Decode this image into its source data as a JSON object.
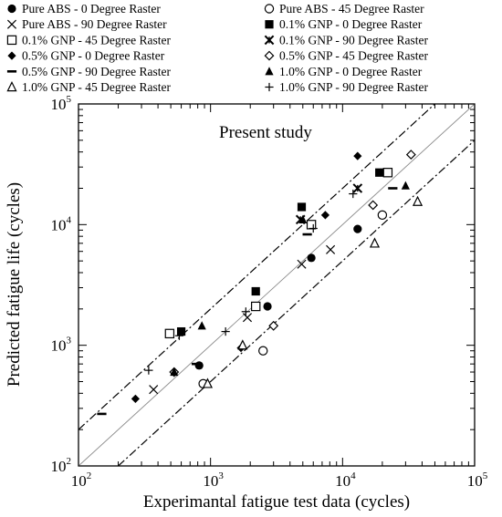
{
  "chart_data": {
    "type": "scatter",
    "title": "",
    "xlabel": "Experimantal fatigue test data (cycles)",
    "ylabel": "Predicted fatigue life (cycles)",
    "x_scale": "log",
    "y_scale": "log",
    "xlim": [
      100,
      100000
    ],
    "ylim": [
      100,
      100000
    ],
    "x_ticks": [
      100,
      1000,
      10000,
      100000
    ],
    "y_ticks": [
      100,
      1000,
      10000,
      100000
    ],
    "legend_position": "top",
    "annotation": "Present study",
    "reference_lines": [
      {
        "name": "perfect",
        "factor": 1,
        "style": "solid",
        "color": "#8a8a8a"
      },
      {
        "name": "upper",
        "factor": 2,
        "style": "dash-dot",
        "color": "#000000"
      },
      {
        "name": "lower",
        "factor": 0.5,
        "style": "dash-dot",
        "color": "#000000"
      }
    ],
    "series": [
      {
        "name": "Pure ABS - 0 Degree Raster",
        "marker": "filled-circle",
        "x": [
          820,
          2700,
          5800,
          13000
        ],
        "y": [
          680,
          2100,
          5300,
          9200
        ]
      },
      {
        "name": "Pure ABS - 45 Degree Raster",
        "marker": "open-circle",
        "x": [
          880,
          2500,
          20000
        ],
        "y": [
          480,
          900,
          12000
        ]
      },
      {
        "name": "Pure ABS - 90 Degree Raster",
        "marker": "x",
        "x": [
          370,
          1900,
          4900,
          8100
        ],
        "y": [
          430,
          1700,
          4700,
          6200
        ]
      },
      {
        "name": "0.1% GNP - 0 Degree Raster",
        "marker": "filled-square",
        "x": [
          600,
          2200,
          4900,
          19000
        ],
        "y": [
          1300,
          2800,
          14000,
          27000
        ]
      },
      {
        "name": "0.1% GNP - 45 Degree Raster",
        "marker": "open-square",
        "x": [
          490,
          2200,
          5800,
          22000
        ],
        "y": [
          1250,
          2100,
          10000,
          27000
        ]
      },
      {
        "name": "0.1% GNP - 90 Degree Raster",
        "marker": "asterisk",
        "x": [
          4800,
          13000
        ],
        "y": [
          11000,
          20000
        ]
      },
      {
        "name": "0.5% GNP - 0 Degree Raster",
        "marker": "filled-diamond",
        "x": [
          270,
          1700,
          7400,
          13000
        ],
        "y": [
          360,
          950,
          12000,
          37000
        ]
      },
      {
        "name": "0.5% GNP - 45 Degree Raster",
        "marker": "open-diamond",
        "x": [
          530,
          3000,
          17000,
          33000
        ],
        "y": [
          600,
          1450,
          14500,
          38000
        ]
      },
      {
        "name": "0.5% GNP - 90 Degree Raster",
        "marker": "dash",
        "x": [
          150,
          780,
          5400,
          24000
        ],
        "y": [
          270,
          700,
          8300,
          20000
        ]
      },
      {
        "name": "1.0% GNP - 0 Degree Raster",
        "marker": "filled-triangle",
        "x": [
          530,
          860,
          5000,
          30000
        ],
        "y": [
          600,
          1450,
          11000,
          21000
        ]
      },
      {
        "name": "1.0% GNP - 45 Degree Raster",
        "marker": "open-triangle",
        "x": [
          950,
          1750,
          17500,
          37000
        ],
        "y": [
          480,
          1000,
          7000,
          15500
        ]
      },
      {
        "name": "1.0% GNP - 90 Degree Raster",
        "marker": "plus",
        "x": [
          340,
          580,
          1300,
          1850,
          6000,
          12000
        ],
        "y": [
          620,
          1200,
          1300,
          1900,
          9300,
          18000
        ]
      }
    ]
  }
}
